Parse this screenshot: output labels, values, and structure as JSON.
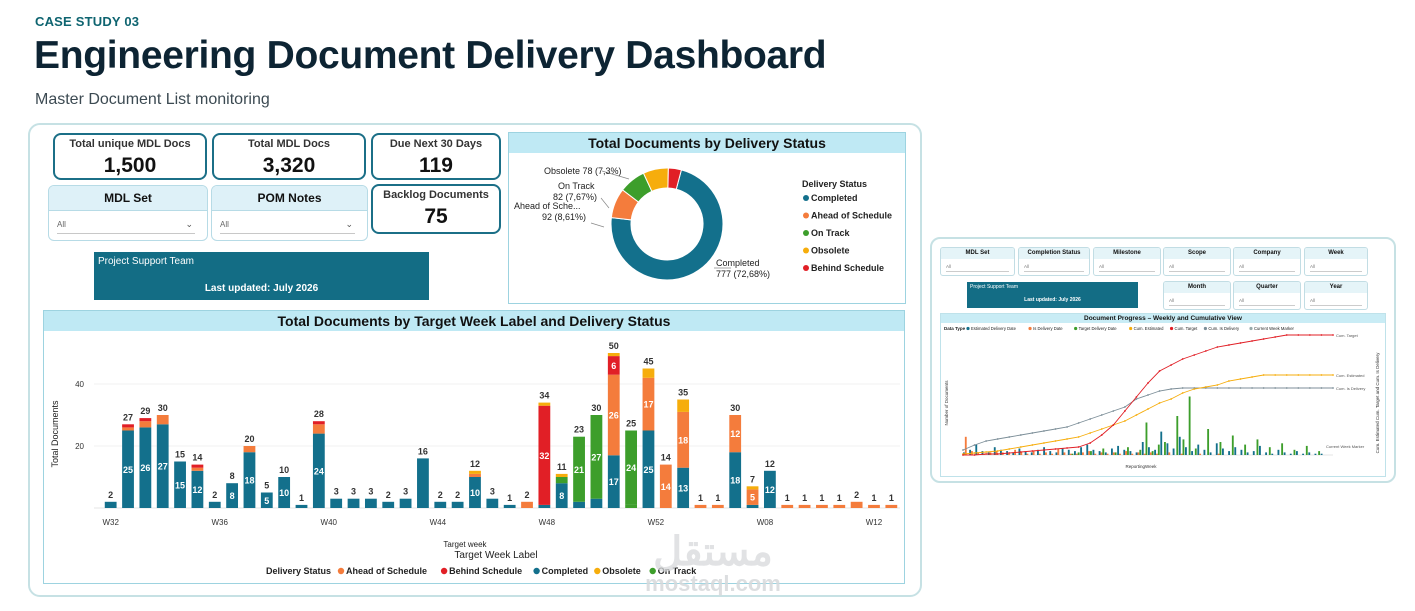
{
  "header": {
    "eyebrow": "CASE STUDY 03",
    "title": "Engineering Document Delivery Dashboard",
    "subtitle": "Master Document List monitoring"
  },
  "kpis": {
    "total_unique": {
      "label": "Total unique MDL Docs",
      "value": "1,500"
    },
    "total_docs": {
      "label": "Total MDL Docs",
      "value": "3,320"
    },
    "due_next": {
      "label": "Due Next 30 Days",
      "value": "119"
    },
    "backlog": {
      "label": "Backlog Documents",
      "value": "75"
    }
  },
  "slicers": {
    "mdl_set": {
      "label": "MDL Set",
      "value": "All"
    },
    "pom_notes": {
      "label": "POM Notes",
      "value": "All"
    }
  },
  "team": {
    "name": "Project Support Team",
    "updated": "Last updated: July 2026"
  },
  "donut": {
    "title": "Total Documents by Delivery Status",
    "legend_title": "Delivery Status",
    "slices": [
      {
        "name": "Completed",
        "value": 777,
        "label": "777 (72,68%)",
        "color": "#13708c"
      },
      {
        "name": "Ahead of Schedule",
        "value": 92,
        "label": "92 (8,61%)",
        "color": "#f47c3c"
      },
      {
        "name": "On Track",
        "value": 82,
        "label": "82 (7,67%)",
        "color": "#3d9e2b"
      },
      {
        "name": "Obsolete",
        "value": 78,
        "label": "78 (7,3%)",
        "color": "#f6ad0c"
      },
      {
        "name": "Behind Schedule",
        "value": 40,
        "label": "",
        "color": "#e11f26"
      }
    ],
    "callouts": {
      "obsolete": "Obsolete 78 (7,3%)",
      "ontrack_name": "On Track",
      "ontrack_val": "82 (7,67%)",
      "ahead_name": "Ahead of Sche...",
      "ahead_val": "92 (8,61%)",
      "completed_name": "Completed",
      "completed_val": "777 (72,68%)"
    }
  },
  "chart_data": {
    "type": "bar",
    "title": "Total Documents by Target Week Label and Delivery Status",
    "xlabel": "Target Week Label",
    "xlabel_top": "Target week",
    "ylabel": "Total Documents",
    "ylim": [
      0,
      55
    ],
    "yticks": [
      20,
      40
    ],
    "tick_labels": [
      "W32",
      "W36",
      "W40",
      "W44",
      "W48",
      "W52",
      "W08",
      "W12"
    ],
    "tick_positions": [
      0,
      4,
      8,
      12,
      16,
      20,
      24,
      28
    ],
    "legend_title": "Delivery Status",
    "series_names": [
      "Completed",
      "On Track",
      "Ahead of Schedule",
      "Behind Schedule",
      "Obsolete"
    ],
    "colors": {
      "Completed": "#13708c",
      "On Track": "#3d9e2b",
      "Ahead of Schedule": "#f47c3c",
      "Behind Schedule": "#e11f26",
      "Obsolete": "#f6ad0c"
    },
    "legend_order": [
      "Ahead of Schedule",
      "Behind Schedule",
      "Completed",
      "Obsolete",
      "On Track"
    ],
    "bars": [
      {
        "total": 2,
        "seg": {
          "Completed": 2
        }
      },
      {
        "total": 27,
        "seg": {
          "Completed": 25,
          "Behind Schedule": 1,
          "Ahead of Schedule": 1
        },
        "labels": {
          "Completed": 25
        }
      },
      {
        "total": 29,
        "seg": {
          "Completed": 26,
          "Behind Schedule": 1,
          "Ahead of Schedule": 2
        },
        "labels": {
          "Completed": 26
        }
      },
      {
        "total": 30,
        "seg": {
          "Completed": 27,
          "Ahead of Schedule": 3
        },
        "labels": {
          "Completed": 27
        }
      },
      {
        "total": 15,
        "seg": {
          "Completed": 15
        },
        "labels": {
          "Completed": 15
        }
      },
      {
        "total": 14,
        "seg": {
          "Completed": 12,
          "Behind Schedule": 1,
          "Ahead of Schedule": 1
        },
        "labels": {
          "Completed": 12
        }
      },
      {
        "total": 2,
        "seg": {
          "Completed": 2
        }
      },
      {
        "total": 8,
        "seg": {
          "Completed": 8
        },
        "labels": {
          "Completed": 8
        }
      },
      {
        "total": 20,
        "seg": {
          "Completed": 18,
          "Ahead of Schedule": 2
        },
        "labels": {
          "Completed": 18
        }
      },
      {
        "total": 5,
        "seg": {
          "Completed": 5
        },
        "labels": {
          "Completed": 5
        }
      },
      {
        "total": 10,
        "seg": {
          "Completed": 10
        },
        "labels": {
          "Completed": 10
        }
      },
      {
        "total": 1,
        "seg": {
          "Completed": 1
        }
      },
      {
        "total": 28,
        "seg": {
          "Completed": 24,
          "Behind Schedule": 1,
          "Ahead of Schedule": 3
        },
        "labels": {
          "Completed": 24
        }
      },
      {
        "total": 3,
        "seg": {
          "Completed": 3
        }
      },
      {
        "total": 3,
        "seg": {
          "Completed": 3
        }
      },
      {
        "total": 3,
        "seg": {
          "Completed": 3
        }
      },
      {
        "total": 2,
        "seg": {
          "Completed": 2
        }
      },
      {
        "total": 3,
        "seg": {
          "Completed": 3
        }
      },
      {
        "total": 16,
        "seg": {
          "Completed": 16
        }
      },
      {
        "total": 2,
        "seg": {
          "Completed": 2
        }
      },
      {
        "total": 2,
        "seg": {
          "Completed": 2
        }
      },
      {
        "total": 12,
        "seg": {
          "Completed": 10,
          "Ahead of Schedule": 1,
          "Obsolete": 1
        },
        "labels": {
          "Completed": 10
        }
      },
      {
        "total": 3,
        "seg": {
          "Completed": 3
        }
      },
      {
        "total": 1,
        "seg": {
          "Completed": 1
        }
      },
      {
        "total": 2,
        "seg": {
          "Ahead of Schedule": 2
        }
      },
      {
        "total": 34,
        "seg": {
          "Behind Schedule": 32,
          "Completed": 1,
          "Obsolete": 1
        },
        "labels": {
          "Behind Schedule": 32
        }
      },
      {
        "total": 11,
        "seg": {
          "Completed": 8,
          "On Track": 2,
          "Obsolete": 1
        },
        "labels": {
          "Completed": 8
        }
      },
      {
        "total": 23,
        "seg": {
          "Completed": 2,
          "On Track": 21
        },
        "labels": {
          "On Track": 21
        }
      },
      {
        "total": 30,
        "seg": {
          "Completed": 3,
          "On Track": 27
        },
        "labels": {
          "On Track": 27
        }
      },
      {
        "total": 50,
        "seg": {
          "Ahead of Schedule": 26,
          "Behind Schedule": 6,
          "Completed": 17,
          "Obsolete": 1
        },
        "labels": {
          "Ahead of Schedule": 26,
          "Behind Schedule": 6,
          "Completed": 17
        }
      },
      {
        "total": 25,
        "seg": {
          "On Track": 1,
          "On Track2": 0,
          "Completed": 0,
          "Obsolete": 0,
          "On Track3": 0,
          "On Track4": 0,
          "On Track5": 0,
          "On Track6": 0,
          "On Track7": 0,
          "On Track8": 0,
          "On Track9": 0,
          "On Track10": 0,
          "On Track11": 0,
          "On Track12": 0,
          "On Track13": 0,
          "On Track14": 0,
          "On Track15": 0,
          "On Track16": 0,
          "On Track17": 0,
          "On Track18": 0,
          "On Track19": 0,
          "On Track20": 0,
          "On Track21": 0,
          "On Track22": 0,
          "On Track23": 0,
          "On Track24": 24
        },
        "labels": {
          "On Track24": 24
        }
      },
      {
        "total": 45,
        "seg": {
          "Ahead of Schedule": 17,
          "Completed": 25,
          "Obsolete": 3
        },
        "labels": {
          "Ahead of Schedule": 17,
          "Completed": 25
        }
      },
      {
        "total": 14,
        "seg": {
          "Ahead of Schedule": 14
        },
        "labels": {
          "Ahead of Schedule": 14
        }
      },
      {
        "total": 35,
        "seg": {
          "Ahead of Schedule": 18,
          "Completed": 13,
          "Obsolete": 4
        },
        "labels": {
          "Ahead of Schedule": 18,
          "Completed": 13
        }
      },
      {
        "total": 1,
        "seg": {
          "Ahead of Schedule": 1
        }
      },
      {
        "total": 1,
        "seg": {
          "Ahead of Schedule": 1
        }
      },
      {
        "total": 30,
        "seg": {
          "Ahead of Schedule": 12,
          "Completed": 18
        },
        "labels": {
          "Ahead of Schedule": 12,
          "Completed": 18
        }
      },
      {
        "total": 7,
        "seg": {
          "Ahead of Schedule": 5,
          "Completed": 1,
          "Obsolete": 1
        },
        "labels": {
          "Ahead of Schedule": 5
        }
      },
      {
        "total": 12,
        "seg": {
          "Completed": 12
        },
        "labels": {
          "Completed": 12
        }
      },
      {
        "total": 1,
        "seg": {
          "Ahead of Schedule": 1
        }
      },
      {
        "total": 1,
        "seg": {
          "Ahead of Schedule": 1
        }
      },
      {
        "total": 1,
        "seg": {
          "Ahead of Schedule": 1
        }
      },
      {
        "total": 1,
        "seg": {
          "Ahead of Schedule": 1
        }
      },
      {
        "total": 2,
        "seg": {
          "Ahead of Schedule": 2
        }
      },
      {
        "total": 1,
        "seg": {
          "Ahead of Schedule": 1
        }
      },
      {
        "total": 1,
        "seg": {
          "Ahead of Schedule": 1
        }
      }
    ]
  },
  "side": {
    "slicers": [
      {
        "label": "MDL Set",
        "value": "All"
      },
      {
        "label": "Completion Status",
        "value": "All"
      },
      {
        "label": "Milestone",
        "value": "All"
      },
      {
        "label": "Scope",
        "value": "All"
      },
      {
        "label": "Company",
        "value": "All"
      },
      {
        "label": "Week",
        "value": "All"
      },
      {
        "label": "Month",
        "value": "All"
      },
      {
        "label": "Quarter",
        "value": "All"
      },
      {
        "label": "Year",
        "value": "All"
      }
    ],
    "team": {
      "name": "Project Support Team",
      "updated": "Last updated: July 2026"
    },
    "progress": {
      "title": "Document Progress – Weekly and Cumulative View",
      "legend_title": "Data Type",
      "legend": [
        {
          "name": "Estimated Delivery Date",
          "color": "#13708c"
        },
        {
          "name": "Is Delivery Date",
          "color": "#f47c3c"
        },
        {
          "name": "Target Delivery Date",
          "color": "#3d9e2b"
        },
        {
          "name": "Cum. Estimated",
          "color": "#f6ad0c"
        },
        {
          "name": "Cum. Target",
          "color": "#e11f26"
        },
        {
          "name": "Cum. Is Delivery",
          "color": "#7c8e98"
        },
        {
          "name": "Current Week Marker",
          "color": "#9aa"
        }
      ],
      "ylabel": "Number of Documents",
      "y2label": "Cum. Estimated Cum. Target and Cum. Is Delivery",
      "xlabel": "ReportingWeek",
      "line_labels": [
        "Cum. Target",
        "Cum. Estimated",
        "Cum. Is Delivery",
        "Current Week Marker"
      ]
    }
  },
  "watermark": {
    "arabic": "مستقل",
    "latin": "mostaql.com"
  }
}
